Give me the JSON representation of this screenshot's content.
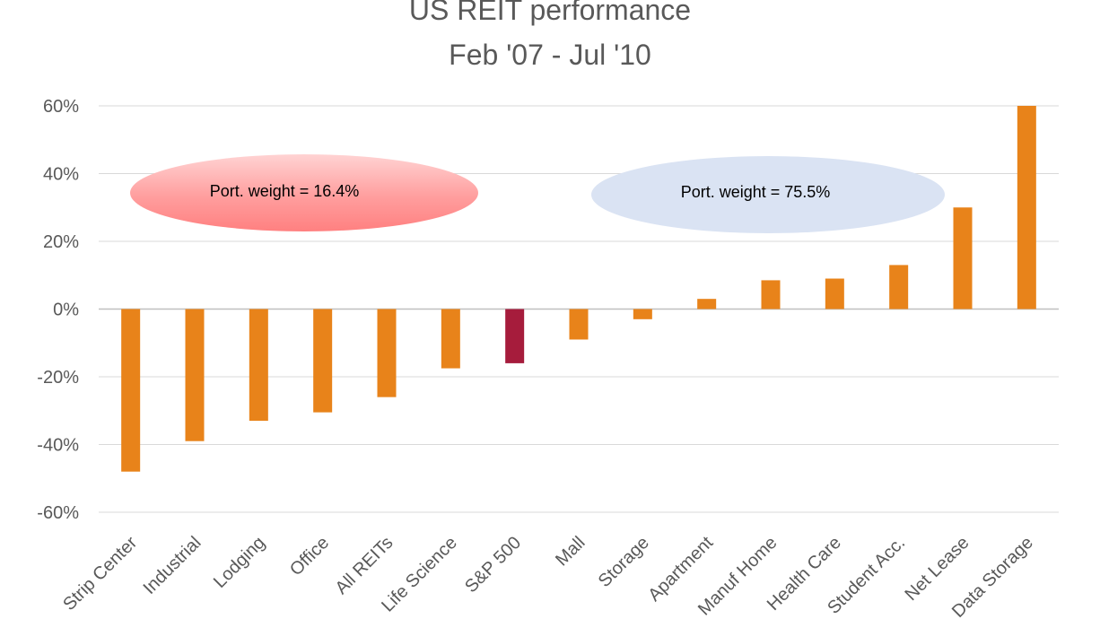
{
  "chart_data": {
    "type": "bar",
    "title": "US REIT performance",
    "subtitle": "Feb '07 - Jul '10",
    "xlabel": "",
    "ylabel": "",
    "ylim": [
      -60,
      60
    ],
    "yticks": [
      60,
      40,
      20,
      0,
      -20,
      -40,
      -60
    ],
    "ytick_labels": [
      "60%",
      "40%",
      "20%",
      "0%",
      "-20%",
      "-40%",
      "-60%"
    ],
    "grid": true,
    "legend": "none",
    "categories": [
      "Strip Center",
      "Industrial",
      "Lodging",
      "Office",
      "All REITs",
      "Life Science",
      "S&P 500",
      "Mall",
      "Storage",
      "Apartment",
      "Manuf Home",
      "Health Care",
      "Student Acc.",
      "Net Lease",
      "Data Storage"
    ],
    "values": [
      -48,
      -39,
      -33,
      -30.5,
      -26,
      -17.5,
      -16,
      -9,
      -3,
      3,
      8.5,
      9,
      13,
      30,
      60
    ],
    "colors": {
      "bar": "#E8831A",
      "highlight_bar": "#A61C3C",
      "highlight_category": "S&P 500",
      "grid": "#D9D9D9",
      "axis_zero": "#BFBFBF"
    },
    "annotations": [
      {
        "text": "Port. weight = 16.4%",
        "style": "red-ellipse"
      },
      {
        "text": "Port. weight = 75.5%",
        "style": "blue-ellipse"
      }
    ]
  }
}
